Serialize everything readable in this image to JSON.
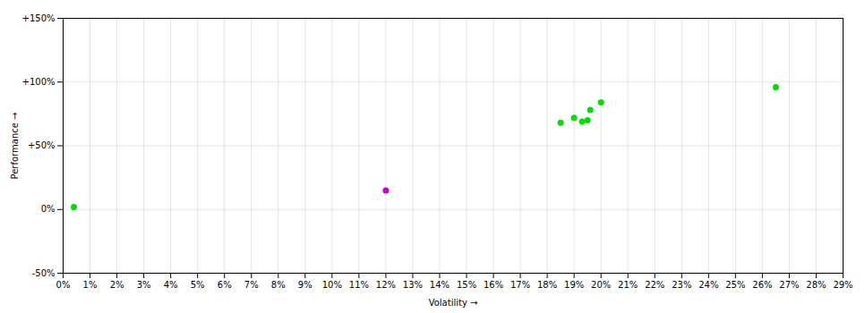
{
  "chart_data": {
    "type": "scatter",
    "xlabel": "Volatility",
    "ylabel": "Performance",
    "xlim": [
      0,
      0.29
    ],
    "ylim": [
      -0.5,
      1.5
    ],
    "xticks": [
      {
        "value": 0.0,
        "label": "0%"
      },
      {
        "value": 0.01,
        "label": "1%"
      },
      {
        "value": 0.02,
        "label": "2%"
      },
      {
        "value": 0.03,
        "label": "3%"
      },
      {
        "value": 0.04,
        "label": "4%"
      },
      {
        "value": 0.05,
        "label": "5%"
      },
      {
        "value": 0.06,
        "label": "6%"
      },
      {
        "value": 0.07,
        "label": "7%"
      },
      {
        "value": 0.08,
        "label": "8%"
      },
      {
        "value": 0.09,
        "label": "9%"
      },
      {
        "value": 0.1,
        "label": "10%"
      },
      {
        "value": 0.11,
        "label": "11%"
      },
      {
        "value": 0.12,
        "label": "12%"
      },
      {
        "value": 0.13,
        "label": "13%"
      },
      {
        "value": 0.14,
        "label": "14%"
      },
      {
        "value": 0.15,
        "label": "15%"
      },
      {
        "value": 0.16,
        "label": "16%"
      },
      {
        "value": 0.17,
        "label": "17%"
      },
      {
        "value": 0.18,
        "label": "18%"
      },
      {
        "value": 0.19,
        "label": "19%"
      },
      {
        "value": 0.2,
        "label": "20%"
      },
      {
        "value": 0.21,
        "label": "21%"
      },
      {
        "value": 0.22,
        "label": "22%"
      },
      {
        "value": 0.23,
        "label": "23%"
      },
      {
        "value": 0.24,
        "label": "24%"
      },
      {
        "value": 0.25,
        "label": "25%"
      },
      {
        "value": 0.26,
        "label": "26%"
      },
      {
        "value": 0.27,
        "label": "27%"
      },
      {
        "value": 0.28,
        "label": "28%"
      },
      {
        "value": 0.29,
        "label": "29%"
      }
    ],
    "yticks": [
      {
        "value": -0.5,
        "label": "-50%"
      },
      {
        "value": 0.0,
        "label": "0%"
      },
      {
        "value": 0.5,
        "label": "+50%"
      },
      {
        "value": 1.0,
        "label": "+100%"
      },
      {
        "value": 1.5,
        "label": "+150%"
      }
    ],
    "grid": true,
    "series": [
      {
        "color": "#00dd00",
        "x": [
          0.004,
          0.185,
          0.19,
          0.193,
          0.195,
          0.196,
          0.2,
          0.265
        ],
        "values": [
          0.02,
          0.68,
          0.72,
          0.69,
          0.7,
          0.78,
          0.84,
          0.96
        ]
      },
      {
        "color": "#cc00cc",
        "x": [
          0.12
        ],
        "values": [
          0.15
        ]
      }
    ]
  }
}
